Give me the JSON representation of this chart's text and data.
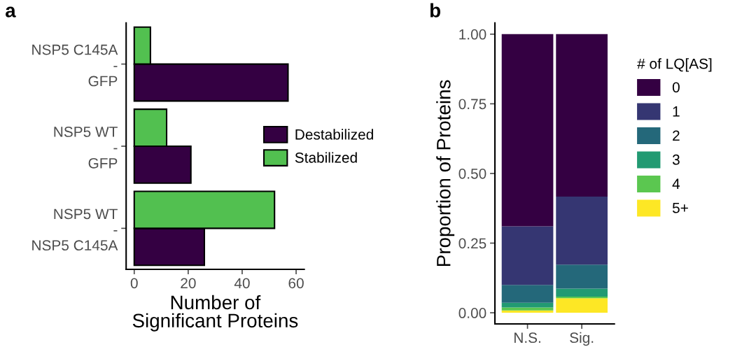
{
  "chart_data": [
    {
      "type": "bar",
      "title": "a",
      "orientation": "horizontal",
      "categories": [
        "NSP5 C145A\n-\nGFP",
        "NSP5 WT\n-\nGFP",
        "NSP5 WT\n-\nNSP5 C145A"
      ],
      "xlabel": "Number of\nSignificant Proteins",
      "xlim": [
        -3,
        63
      ],
      "xticks": [
        0,
        20,
        40,
        60
      ],
      "legend": "right",
      "grid": false,
      "series": [
        {
          "name": "Destabilized",
          "color": "#340042",
          "values": [
            57,
            21,
            26
          ]
        },
        {
          "name": "Stabilized",
          "color": "#52c050",
          "values": [
            6,
            12,
            52
          ]
        }
      ]
    },
    {
      "type": "bar",
      "title": "b",
      "stacked": true,
      "categories": [
        "N.S.",
        "Sig."
      ],
      "ylabel": "Proportion of Proteins",
      "legend_title": "# of LQ[AS]",
      "ylim": [
        -0.04,
        1.04
      ],
      "yticks": [
        {
          "value": 0,
          "label": "0.00"
        },
        {
          "value": 0.25,
          "label": "0.25"
        },
        {
          "value": 0.5,
          "label": "0.50"
        },
        {
          "value": 0.75,
          "label": "0.75"
        },
        {
          "value": 1,
          "label": "1.00"
        }
      ],
      "legend": "right",
      "grid": false,
      "series": [
        {
          "name": "5+",
          "color": "#fde725",
          "values": [
            0.008,
            0.052
          ]
        },
        {
          "name": "4",
          "color": "#5bc750",
          "values": [
            0.011,
            0.006
          ]
        },
        {
          "name": "3",
          "color": "#229a72",
          "values": [
            0.017,
            0.029
          ]
        },
        {
          "name": "2",
          "color": "#24687a",
          "values": [
            0.064,
            0.086
          ]
        },
        {
          "name": "1",
          "color": "#353672",
          "values": [
            0.21,
            0.244
          ]
        },
        {
          "name": "0",
          "color": "#340042",
          "values": [
            0.69,
            0.583
          ]
        }
      ]
    }
  ]
}
